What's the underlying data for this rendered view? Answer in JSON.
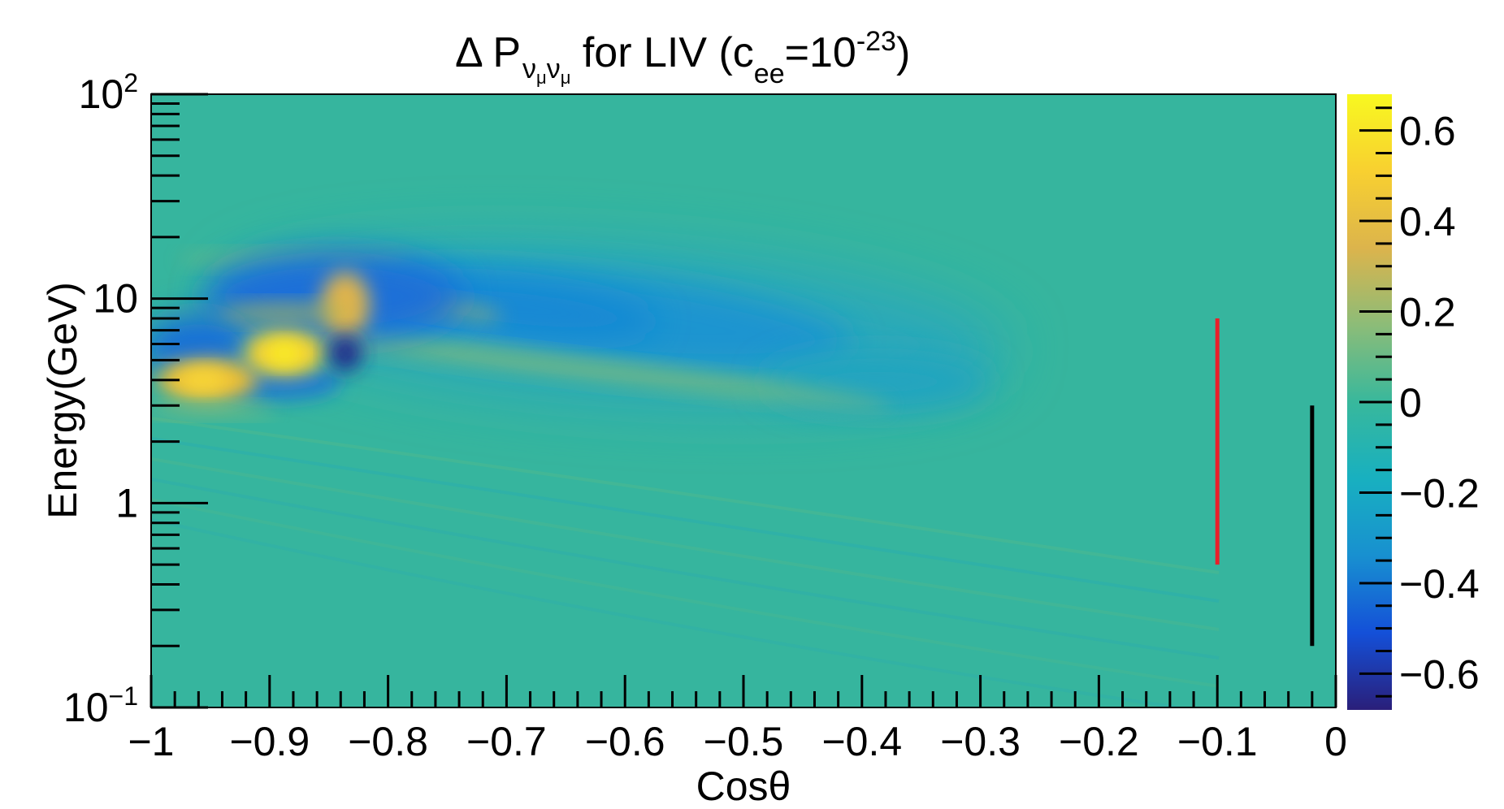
{
  "chart_data": {
    "type": "heatmap",
    "title": {
      "delta": "Δ P",
      "sub1": "ν",
      "subsub1": "μ",
      "sub2": "ν",
      "subsub2": "μ",
      "for_liv": " for LIV (c",
      "ee": "ee",
      "eq": "=10",
      "exp": "-23",
      "close": ")"
    },
    "xlabel": "Cosθ",
    "ylabel": "Energy(GeV)",
    "xlim": [
      -1,
      0
    ],
    "ylim": [
      0.1,
      100
    ],
    "y_log_scale": true,
    "x_ticks": [
      {
        "value": -1,
        "label": "−1"
      },
      {
        "value": -0.9,
        "label": "−0.9"
      },
      {
        "value": -0.8,
        "label": "−0.8"
      },
      {
        "value": -0.7,
        "label": "−0.7"
      },
      {
        "value": -0.6,
        "label": "−0.6"
      },
      {
        "value": -0.5,
        "label": "−0.5"
      },
      {
        "value": -0.4,
        "label": "−0.4"
      },
      {
        "value": -0.3,
        "label": "−0.3"
      },
      {
        "value": -0.2,
        "label": "−0.2"
      },
      {
        "value": -0.1,
        "label": "−0.1"
      },
      {
        "value": 0,
        "label": "0"
      }
    ],
    "y_ticks": [
      {
        "value": 0.1,
        "base": "10",
        "exp": "−1"
      },
      {
        "value": 1,
        "base": "1",
        "exp": ""
      },
      {
        "value": 10,
        "base": "10",
        "exp": ""
      },
      {
        "value": 100,
        "base": "10",
        "exp": "2"
      }
    ],
    "colorbar": {
      "range": [
        -0.68,
        0.68
      ],
      "ticks": [
        {
          "value": 0.6,
          "label": "0.6"
        },
        {
          "value": 0.4,
          "label": "0.4"
        },
        {
          "value": 0.2,
          "label": "0.2"
        },
        {
          "value": 0,
          "label": "0"
        },
        {
          "value": -0.2,
          "label": "−0.2"
        },
        {
          "value": -0.4,
          "label": "−0.4"
        },
        {
          "value": -0.6,
          "label": "−0.6"
        }
      ],
      "palette": [
        "#2a1f7a",
        "#1450d8",
        "#1890d0",
        "#18b0c0",
        "#38b89c",
        "#8cbc78",
        "#dcb44c",
        "#f8d030",
        "#f8f820"
      ]
    },
    "background_value": 0.0,
    "features": [
      {
        "name": "dip-band",
        "x_range": [
          -0.83,
          -0.22
        ],
        "e_range": [
          3,
          14
        ],
        "min_value": -0.28
      },
      {
        "name": "peak-1",
        "x": -0.96,
        "e": 4,
        "value": 0.6
      },
      {
        "name": "peak-2",
        "x": -0.89,
        "e": 5.5,
        "value": 0.68
      },
      {
        "name": "peak-3",
        "x": -0.84,
        "e": 9,
        "value": 0.35
      },
      {
        "name": "dip-1",
        "x": -0.97,
        "e": 5.5,
        "value": -0.4
      },
      {
        "name": "dip-2",
        "x": -0.84,
        "e": 5.5,
        "value": -0.68
      },
      {
        "name": "dip-3",
        "x": -0.9,
        "e": 4,
        "value": -0.35
      }
    ],
    "markers": [
      {
        "name": "red-line",
        "x": -0.1,
        "e_min": 0.5,
        "e_max": 8,
        "color": "#e8202a"
      },
      {
        "name": "black-line",
        "x": -0.02,
        "e_min": 0.2,
        "e_max": 3,
        "color": "#000000"
      }
    ]
  }
}
